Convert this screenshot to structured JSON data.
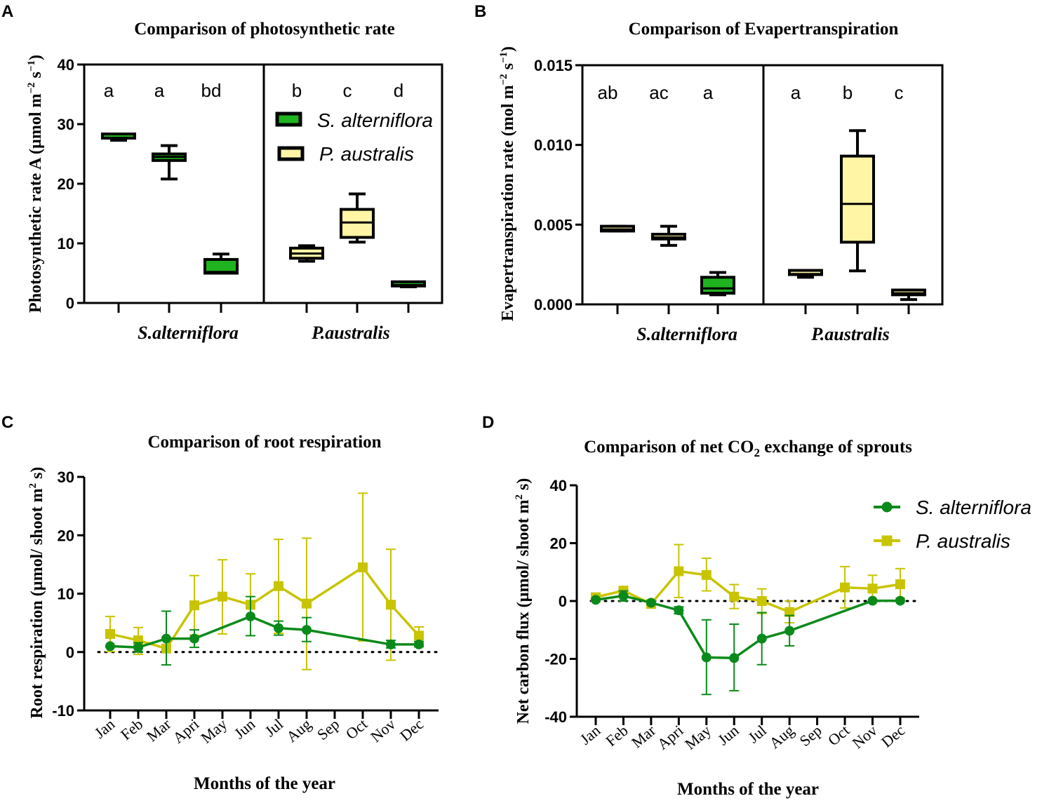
{
  "colors": {
    "s_line": "#0a8a1a",
    "p_line": "#c8c400",
    "s_fill": "#1fb31f",
    "p_fill": "#fff5a5",
    "axis": "#000000"
  },
  "chart_data": [
    {
      "panel": "A",
      "type": "box",
      "title": "Comparison of photosynthetic rate",
      "ylabel": {
        "main": "Photosynthetic rate A (µmol m",
        "sup1": "−2",
        "mid": " s",
        "sup2": "−1",
        "end": ")"
      },
      "ylim": [
        0,
        40
      ],
      "yticks": [
        0,
        10,
        20,
        30,
        40
      ],
      "groups": [
        "S.alterniflora",
        "P.australis"
      ],
      "legend": [
        {
          "name": "S. alterniflora"
        },
        {
          "name": "P. australis"
        }
      ],
      "boxes": [
        {
          "group": 0,
          "species": "S. alterniflora",
          "letter": "a",
          "min": 27.3,
          "q1": 27.4,
          "median": 27.7,
          "q3": 28.0,
          "max": 28.0
        },
        {
          "group": 0,
          "species": "S. alterniflora",
          "letter": "a",
          "min": 20.8,
          "q1": 23.9,
          "median": 24.5,
          "q3": 25.0,
          "max": 26.4
        },
        {
          "group": 0,
          "species": "S. alterniflora",
          "letter": "bd",
          "min": 5.0,
          "q1": 5.0,
          "median": 5.2,
          "q3": 7.3,
          "max": 8.2
        },
        {
          "group": 1,
          "species": "P. australis",
          "letter": "b",
          "min": 7.0,
          "q1": 7.5,
          "median": 8.3,
          "q3": 9.2,
          "max": 9.6
        },
        {
          "group": 1,
          "species": "P. australis",
          "letter": "c",
          "min": 10.2,
          "q1": 11.0,
          "median": 13.5,
          "q3": 15.7,
          "max": 18.3
        },
        {
          "group": 1,
          "species": "S. alterniflora",
          "letter": "d",
          "min": 2.7,
          "q1": 2.8,
          "median": 3.0,
          "q3": 3.2,
          "max": 3.2
        }
      ]
    },
    {
      "panel": "B",
      "type": "box",
      "title": "Comparison of Evapertranspiration",
      "ylabel": {
        "main": "Evapertranspiration rate (mol m",
        "sup1": "−2",
        "mid": " s",
        "sup2": "−1",
        "end": ")"
      },
      "ylim": [
        0,
        0.015
      ],
      "yticks": [
        "0.000",
        "0.005",
        "0.010",
        "0.015"
      ],
      "groups": [
        "S.alterniflora",
        "P.australis"
      ],
      "boxes": [
        {
          "group": 0,
          "species": "P. australis",
          "letter": "ab",
          "min": 0.0046,
          "q1": 0.0046,
          "median": 0.0047,
          "q3": 0.0049,
          "max": 0.0049
        },
        {
          "group": 0,
          "species": "P. australis",
          "letter": "ac",
          "min": 0.0037,
          "q1": 0.0041,
          "median": 0.0042,
          "q3": 0.0044,
          "max": 0.0049
        },
        {
          "group": 0,
          "species": "S. alterniflora",
          "letter": "a",
          "min": 0.0006,
          "q1": 0.0007,
          "median": 0.001,
          "q3": 0.0017,
          "max": 0.002
        },
        {
          "group": 1,
          "species": "P. australis",
          "letter": "a",
          "min": 0.0017,
          "q1": 0.0018,
          "median": 0.0019,
          "q3": 0.002,
          "max": 0.0021
        },
        {
          "group": 1,
          "species": "P. australis",
          "letter": "b",
          "min": 0.0021,
          "q1": 0.0039,
          "median": 0.0063,
          "q3": 0.0093,
          "max": 0.0109
        },
        {
          "group": 1,
          "species": "P. australis",
          "letter": "c",
          "min": 0.0003,
          "q1": 0.0006,
          "median": 0.0007,
          "q3": 0.0009,
          "max": 0.0009
        }
      ]
    },
    {
      "panel": "C",
      "type": "line",
      "title": "Comparison of root respiration",
      "ylabel": {
        "main": "Root respiration (µmol/ shoot m",
        "sup1": "2",
        "end": " s)"
      },
      "xlabel": "Months of the year",
      "ylim": [
        -10,
        30
      ],
      "yticks": [
        -10,
        0,
        10,
        20,
        30
      ],
      "categories": [
        "Jan",
        "Feb",
        "Mar",
        "Apri",
        "May",
        "Jun",
        "Jul",
        "Aug",
        "Sep",
        "Oct",
        "Nov",
        "Dec"
      ],
      "reference_line": 0,
      "series": [
        {
          "values": [
            1.0,
            0.8,
            2.3,
            2.3,
            null,
            6.1,
            4.1,
            3.8,
            null,
            null,
            1.3,
            1.3
          ],
          "err_hi": [
            1.0,
            1.6,
            7.0,
            3.8,
            null,
            9.5,
            5.3,
            5.9,
            null,
            null,
            2.0,
            1.8
          ],
          "err_lo": [
            1.0,
            0.0,
            -2.2,
            0.8,
            null,
            2.8,
            2.9,
            1.8,
            null,
            null,
            0.7,
            0.9
          ]
        },
        {
          "values": [
            3.1,
            2.0,
            0.6,
            8.0,
            9.5,
            8.1,
            11.3,
            8.3,
            null,
            14.5,
            8.1,
            2.8
          ],
          "err_hi": [
            6.1,
            4.2,
            0.6,
            13.1,
            15.8,
            13.4,
            19.3,
            19.5,
            null,
            27.2,
            17.6,
            4.3
          ],
          "err_lo": [
            0.1,
            -0.4,
            0.6,
            2.9,
            3.1,
            2.8,
            3.2,
            -3.0,
            null,
            1.9,
            -1.4,
            1.3
          ]
        }
      ]
    },
    {
      "panel": "D",
      "type": "line",
      "title_pre": "Comparison of net CO",
      "title_sub": "2",
      "title_post": " exchange of sprouts",
      "ylabel": {
        "main": "Net carbon flux (µmol/ shoot m",
        "sup1": "2",
        "end": " s)"
      },
      "xlabel": "Months of the year",
      "ylim": [
        -40,
        40
      ],
      "yticks": [
        -40,
        -20,
        0,
        20,
        40
      ],
      "categories": [
        "Jan",
        "Feb",
        "Mar",
        "Apri",
        "May",
        "Jun",
        "Jul",
        "Aug",
        "Sep",
        "Oct",
        "Nov",
        "Dec"
      ],
      "reference_line": 0,
      "legend_position": "top-right",
      "series": [
        {
          "name": "S. alterniflora",
          "values": [
            0.4,
            1.8,
            -0.6,
            -3.2,
            -19.5,
            -19.7,
            -13.0,
            -10.3,
            null,
            null,
            0.1,
            0.1
          ],
          "err_hi": [
            0.4,
            3.5,
            -0.6,
            -2.0,
            -6.5,
            -8.0,
            -4.0,
            -5.0,
            null,
            null,
            0.1,
            0.1
          ],
          "err_lo": [
            0.4,
            0.0,
            -0.6,
            -4.4,
            -32.3,
            -31.0,
            -22.0,
            -15.5,
            null,
            null,
            0.1,
            0.1
          ]
        },
        {
          "name": "P. australis",
          "values": [
            1.3,
            3.6,
            -1.0,
            10.3,
            9.0,
            1.5,
            0.0,
            -3.8,
            null,
            4.7,
            4.3,
            5.8
          ],
          "err_hi": [
            1.3,
            3.6,
            -1.0,
            19.5,
            14.8,
            5.7,
            4.2,
            0.0,
            null,
            11.9,
            8.9,
            11.2
          ],
          "err_lo": [
            1.3,
            3.6,
            -1.0,
            1.2,
            3.5,
            -2.6,
            -4.3,
            -7.5,
            null,
            -2.4,
            0.2,
            1.0
          ]
        }
      ]
    }
  ]
}
